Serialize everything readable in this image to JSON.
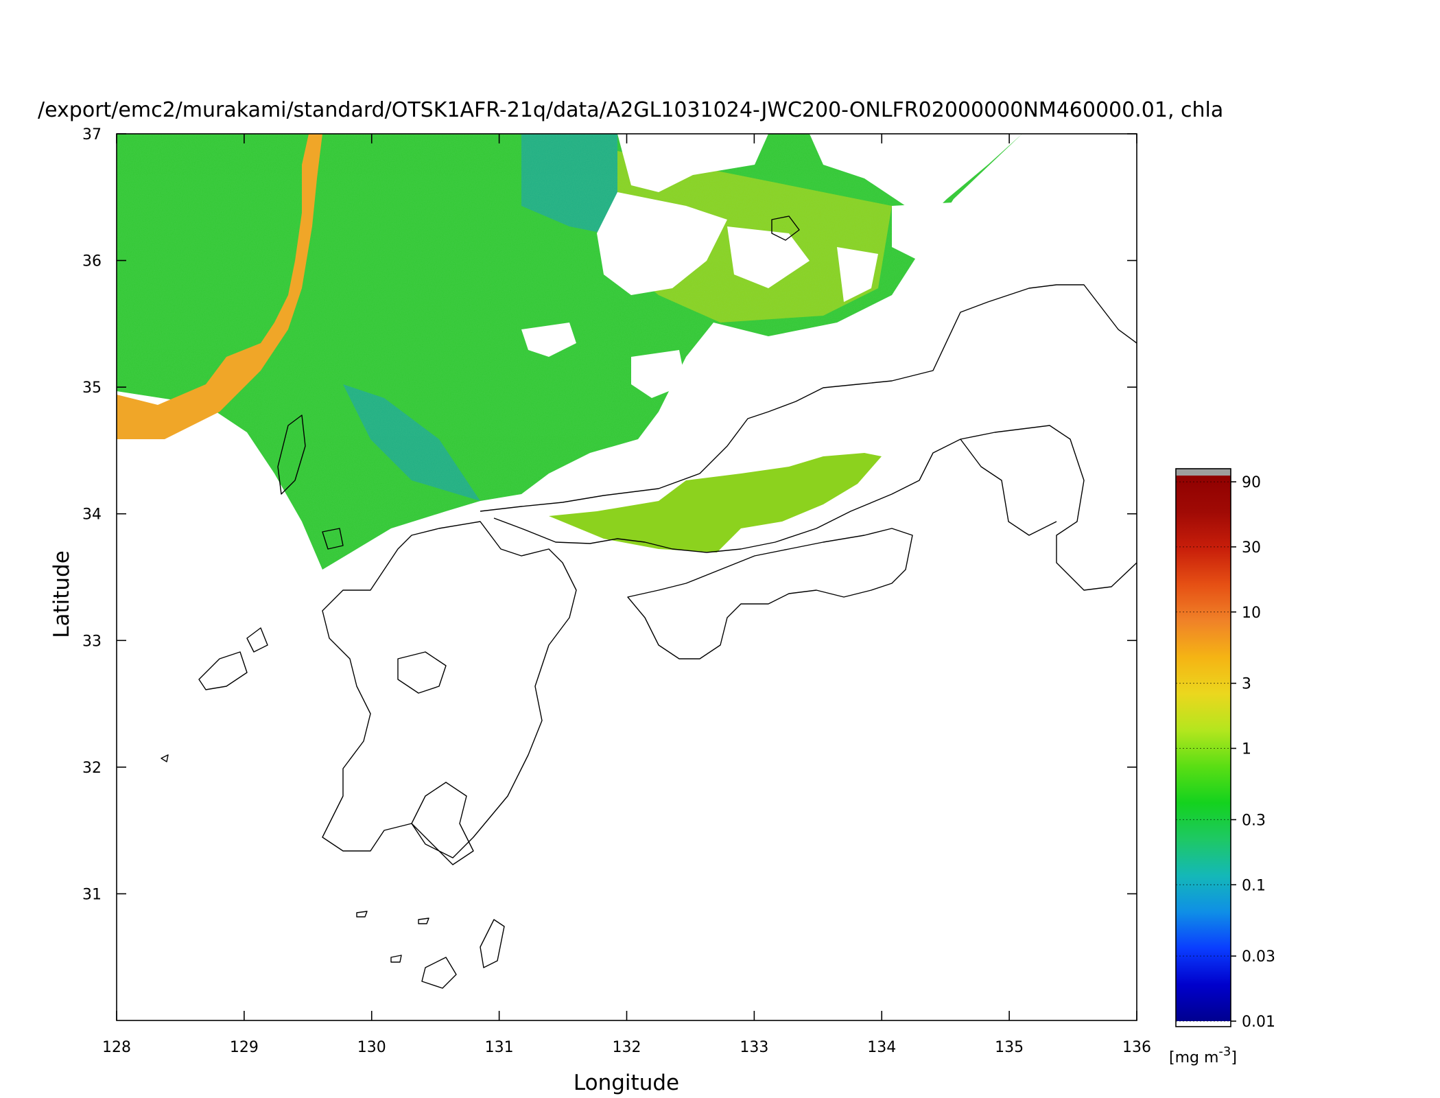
{
  "title": "/export/emc2/murakami/standard/OTSK1AFR-21q/data/A2GL1031024-JWC200-ONLFR02000000NM460000.01, chla",
  "axes": {
    "xlabel": "Longitude",
    "ylabel": "Latitude",
    "xlim": [
      128,
      136
    ],
    "ylim": [
      30,
      37
    ],
    "x_ticks": [
      "128",
      "129",
      "130",
      "131",
      "132",
      "133",
      "134",
      "135",
      "136"
    ],
    "y_ticks": [
      "31",
      "32",
      "33",
      "34",
      "35",
      "36",
      "37"
    ]
  },
  "colorbar": {
    "scale": "log",
    "unit_prefix": "[mg m",
    "unit_exp": "-3",
    "unit_suffix": "]",
    "range": [
      0.01,
      100
    ],
    "ticks": [
      "90",
      "30",
      "10",
      "3",
      "1",
      "0.3",
      "0.1",
      "0.03",
      "0.01"
    ],
    "colors": [
      "#00008f",
      "#0000cc",
      "#0a3dff",
      "#0f8fe6",
      "#14b8b8",
      "#1ec864",
      "#14d21e",
      "#5ade14",
      "#b4e61e",
      "#ebd71e",
      "#f5b414",
      "#f08228",
      "#e65014",
      "#c81e0a",
      "#a00a05",
      "#8f0000"
    ],
    "overflow_color": "#9e9e9e"
  },
  "colors": {
    "ocean_low": "#1fae84",
    "ocean_mid": "#32c832",
    "ocean_high": "#8cd21e",
    "coastal": "#f0a628",
    "cloud": "#ffffff",
    "coastline": "#000000"
  }
}
